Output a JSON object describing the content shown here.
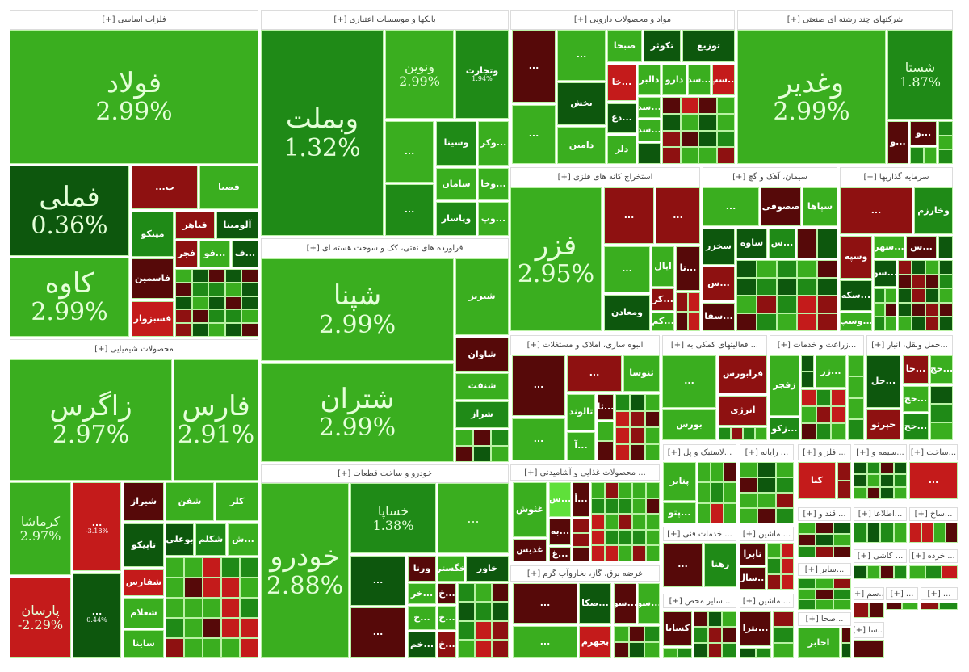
{
  "palette": {
    "G": "#3aae1f",
    "g": "#1f8a17",
    "d": "#0d570d",
    "m": "#560909",
    "r": "#8e1111",
    "R": "#c41b1b",
    "L": "#5fe03a"
  },
  "sectors": [
    {
      "title": "فلزات اساسی [+]",
      "tiles": [
        {
          "s": "فولاد",
          "c": "2.99%",
          "k": "G"
        },
        {
          "s": "فملی",
          "c": "0.36%",
          "k": "d"
        },
        {
          "s": "کاوه",
          "c": "2.99%",
          "k": "G"
        },
        {
          "s": "ب...",
          "c": "",
          "k": "r"
        },
        {
          "s": "فصبا",
          "c": "",
          "k": "G"
        },
        {
          "s": "مینکو",
          "c": "",
          "k": "g"
        },
        {
          "s": "فباهر",
          "c": "",
          "k": "r"
        },
        {
          "s": "آلومینا",
          "c": "",
          "k": "d"
        },
        {
          "s": "فجر",
          "c": "",
          "k": "r"
        },
        {
          "s": "...فو",
          "c": "",
          "k": "G"
        },
        {
          "s": "...ف",
          "c": "",
          "k": "d"
        },
        {
          "s": "فاسمین",
          "c": "",
          "k": "m"
        },
        {
          "s": "فسبزوار",
          "c": "",
          "k": "R"
        }
      ]
    },
    {
      "title": "بانکها و موسسات اعتباری [+]",
      "tiles": [
        {
          "s": "وبملت",
          "c": "1.32%",
          "k": "g"
        },
        {
          "s": "ونوین",
          "c": "2.99%",
          "k": "G"
        },
        {
          "s": "وتجارت",
          "c": "1.94%",
          "k": "g"
        },
        {
          "s": "...",
          "c": "",
          "k": "G"
        },
        {
          "s": "...",
          "c": "",
          "k": "g"
        },
        {
          "s": "وسینا",
          "c": "",
          "k": "g"
        },
        {
          "s": "سامان",
          "c": "",
          "k": "G"
        },
        {
          "s": "وپاسار",
          "c": "",
          "k": "g"
        },
        {
          "s": "...وکر",
          "c": "",
          "k": "G"
        },
        {
          "s": "...وخا",
          "c": "",
          "k": "G"
        },
        {
          "s": "...وپ",
          "c": "",
          "k": "G"
        }
      ]
    },
    {
      "title": "فراورده های نفتی، کک و سوخت هسته ای [+]",
      "tiles": [
        {
          "s": "شپنا",
          "c": "2.99%",
          "k": "G"
        },
        {
          "s": "شتران",
          "c": "2.99%",
          "k": "G"
        },
        {
          "s": "شبریز",
          "c": "",
          "k": "G"
        },
        {
          "s": "شاوان",
          "c": "",
          "k": "m"
        },
        {
          "s": "شنفت",
          "c": "",
          "k": "G"
        },
        {
          "s": "شراز",
          "c": "",
          "k": "g"
        }
      ]
    },
    {
      "title": "محصولات شیمیایی [+]",
      "tiles": [
        {
          "s": "زاگرس",
          "c": "2.97%",
          "k": "G"
        },
        {
          "s": "فارس",
          "c": "2.91%",
          "k": "G"
        },
        {
          "s": "کرماشا",
          "c": "2.97%",
          "k": "G"
        },
        {
          "s": "...",
          "c": "-3.18%",
          "k": "R"
        },
        {
          "s": "پارسان",
          "c": "-2.29%",
          "k": "R"
        },
        {
          "s": "...",
          "c": "0.44%",
          "k": "d"
        },
        {
          "s": "شیراز",
          "c": "",
          "k": "m"
        },
        {
          "s": "شفن",
          "c": "",
          "k": "G"
        },
        {
          "s": "کلر",
          "c": "",
          "k": "G"
        },
        {
          "s": "تاپیکو",
          "c": "",
          "k": "d"
        },
        {
          "s": "بوعلی",
          "c": "",
          "k": "d"
        },
        {
          "s": "شکلم",
          "c": "",
          "k": "g"
        },
        {
          "s": "...ش",
          "c": "",
          "k": "G"
        },
        {
          "s": "شفارس",
          "c": "",
          "k": "R"
        },
        {
          "s": "شغلام",
          "c": "",
          "k": "G"
        },
        {
          "s": "ساینا",
          "c": "",
          "k": "G"
        }
      ]
    },
    {
      "title": "خودرو و ساخت قطعات [+]",
      "tiles": [
        {
          "s": "خودرو",
          "c": "2.88%",
          "k": "G"
        },
        {
          "s": "خساپا",
          "c": "1.38%",
          "k": "g"
        },
        {
          "s": "...",
          "c": "",
          "k": "G"
        },
        {
          "s": "...",
          "c": "",
          "k": "d"
        },
        {
          "s": "...",
          "c": "",
          "k": "m"
        },
        {
          "s": "ورنا",
          "c": "",
          "k": "m"
        },
        {
          "s": "خگستر",
          "c": "",
          "k": "G"
        },
        {
          "s": "خاور",
          "c": "",
          "k": "d"
        },
        {
          "s": "...خر",
          "c": "",
          "k": "G"
        },
        {
          "s": "...خ",
          "c": "",
          "k": "m"
        },
        {
          "s": "...خ",
          "c": "",
          "k": "G"
        },
        {
          "s": "...خ",
          "c": "",
          "k": "G"
        },
        {
          "s": "...خم",
          "c": "",
          "k": "d"
        },
        {
          "s": "...خ",
          "c": "",
          "k": "r"
        }
      ]
    },
    {
      "title": "مواد و محصولات دارویی [+]",
      "tiles": [
        {
          "s": "...",
          "c": "",
          "k": "m"
        },
        {
          "s": "...",
          "c": "",
          "k": "G"
        },
        {
          "s": "...",
          "c": "",
          "k": "G"
        },
        {
          "s": "بخش",
          "c": "",
          "k": "d"
        },
        {
          "s": "دامین",
          "c": "",
          "k": "G"
        },
        {
          "s": "صبحا",
          "c": "",
          "k": "G"
        },
        {
          "s": "تکوثر",
          "c": "",
          "k": "d"
        },
        {
          "s": "توزیع",
          "c": "",
          "k": "d"
        },
        {
          "s": "...خا",
          "c": "",
          "k": "R"
        },
        {
          "s": "دالبر",
          "c": "",
          "k": "G"
        },
        {
          "s": "دارو",
          "c": "",
          "k": "G"
        },
        {
          "s": "...سد",
          "c": "",
          "k": "G"
        },
        {
          "s": "...سپ",
          "c": "",
          "k": "R"
        },
        {
          "s": "...دع",
          "c": "",
          "k": "d"
        },
        {
          "s": "...سد",
          "c": "",
          "k": "G"
        },
        {
          "s": "...سد",
          "c": "",
          "k": "G"
        },
        {
          "s": "دلر",
          "c": "",
          "k": "G"
        }
      ]
    },
    {
      "title": "شرکتهای چند رشته ای صنعتی [+]",
      "tiles": [
        {
          "s": "وغدیر",
          "c": "2.99%",
          "k": "G"
        },
        {
          "s": "شستا",
          "c": "1.87%",
          "k": "g"
        },
        {
          "s": "...و",
          "c": "",
          "k": "m"
        },
        {
          "s": "...و",
          "c": "",
          "k": "m"
        }
      ]
    },
    {
      "title": "استخراج کانه های فلزی [+]",
      "tiles": [
        {
          "s": "فزر",
          "c": "2.95%",
          "k": "G"
        },
        {
          "s": "...",
          "c": "",
          "k": "r"
        },
        {
          "s": "...",
          "c": "",
          "k": "r"
        },
        {
          "s": "...",
          "c": "",
          "k": "G"
        },
        {
          "s": "اپال",
          "c": "",
          "k": "G"
        },
        {
          "s": "...تا",
          "c": "",
          "k": "m"
        },
        {
          "s": "ومعادن",
          "c": "",
          "k": "d"
        },
        {
          "s": "...کر",
          "c": "",
          "k": "r"
        },
        {
          "s": "...کم",
          "c": "",
          "k": "G"
        }
      ]
    },
    {
      "title": "سیمان، آهک و گچ [+]",
      "tiles": [
        {
          "s": "...",
          "c": "",
          "k": "G"
        },
        {
          "s": "صصوفی",
          "c": "",
          "k": "m"
        },
        {
          "s": "سپاها",
          "c": "",
          "k": "G"
        },
        {
          "s": "سخزر",
          "c": "",
          "k": "d"
        },
        {
          "s": "ساوه",
          "c": "",
          "k": "d"
        },
        {
          "s": "...س",
          "c": "",
          "k": "g"
        },
        {
          "s": "...س",
          "c": "",
          "k": "r"
        },
        {
          "s": "...سفا",
          "c": "",
          "k": "m"
        }
      ]
    },
    {
      "title": "سرمایه گذاریها [+]",
      "tiles": [
        {
          "s": "...",
          "c": "",
          "k": "r"
        },
        {
          "s": "وخارزم",
          "c": "",
          "k": "g"
        },
        {
          "s": "وسپه",
          "c": "",
          "k": "r"
        },
        {
          "s": "...سهر",
          "c": "",
          "k": "G"
        },
        {
          "s": "...س",
          "c": "",
          "k": "m"
        },
        {
          "s": "...سو",
          "c": "",
          "k": "d"
        },
        {
          "s": "...سکه",
          "c": "",
          "k": "d"
        },
        {
          "s": "...وسپ",
          "c": "",
          "k": "G"
        }
      ]
    },
    {
      "title": "انبوه سازی، املاک و مستغلات [+]",
      "tiles": [
        {
          "s": "...",
          "c": "",
          "k": "m"
        },
        {
          "s": "...",
          "c": "",
          "k": "r"
        },
        {
          "s": "ثنوسا",
          "c": "",
          "k": "G"
        },
        {
          "s": "...",
          "c": "",
          "k": "G"
        },
        {
          "s": "ثالوند",
          "c": "",
          "k": "G"
        },
        {
          "s": "...آ",
          "c": "",
          "k": "G"
        },
        {
          "s": "...ثا",
          "c": "",
          "k": "m"
        }
      ]
    },
    {
      "title": "... فعالیتهای کمکی به [+]",
      "tiles": [
        {
          "s": "...",
          "c": "",
          "k": "G"
        },
        {
          "s": "بورس",
          "c": "",
          "k": "G"
        },
        {
          "s": "فرابورس",
          "c": "",
          "k": "r"
        },
        {
          "s": "انرژی",
          "c": "",
          "k": "r"
        }
      ]
    },
    {
      "title": "...زراعت و خدمات [+]",
      "tiles": [
        {
          "s": "زفجر",
          "c": "",
          "k": "G"
        },
        {
          "s": "...زکو",
          "c": "",
          "k": "g"
        },
        {
          "s": "...زر",
          "c": "",
          "k": "G"
        }
      ]
    },
    {
      "title": "...حمل ونقل، انبار [+]",
      "tiles": [
        {
          "s": "...حل",
          "c": "",
          "k": "d"
        },
        {
          "s": "...حا",
          "c": "",
          "k": "r"
        },
        {
          "s": "...حج",
          "c": "",
          "k": "G"
        },
        {
          "s": "...حج",
          "c": "",
          "k": "G"
        },
        {
          "s": "حپرتو",
          "c": "",
          "k": "r"
        },
        {
          "s": "...حج",
          "c": "",
          "k": "g"
        }
      ]
    },
    {
      "title": "... محصولات غذایی و آشامیدنی [+]",
      "tiles": [
        {
          "s": "غثوش",
          "c": "",
          "k": "G"
        },
        {
          "s": "...س",
          "c": "",
          "k": "L"
        },
        {
          "s": "...به",
          "c": "",
          "k": "m"
        },
        {
          "s": "غدیس",
          "c": "",
          "k": "m"
        },
        {
          "s": "...غ",
          "c": "",
          "k": "m"
        },
        {
          "s": "...أ",
          "c": "",
          "k": "m"
        }
      ]
    },
    {
      "title": "عرضه برق، گاز، بخاروآب گرم [+]",
      "tiles": [
        {
          "s": "...",
          "c": "",
          "k": "m"
        },
        {
          "s": "...صکا",
          "c": "",
          "k": "d"
        },
        {
          "s": "...سو",
          "c": "",
          "k": "m"
        },
        {
          "s": "...سو",
          "c": "",
          "k": "G"
        },
        {
          "s": "...",
          "c": "",
          "k": "G"
        },
        {
          "s": "بجهرم",
          "c": "",
          "k": "R"
        }
      ]
    },
    {
      "title": "...لاستیک و پل [+]",
      "tiles": [
        {
          "s": "پتایر",
          "c": "",
          "k": "G"
        },
        {
          "s": "...پتو",
          "c": "",
          "k": "G"
        }
      ]
    },
    {
      "title": "... خدمات فنی [+]",
      "tiles": [
        {
          "s": "...",
          "c": "",
          "k": "m"
        },
        {
          "s": "رهنا",
          "c": "",
          "k": "g"
        }
      ]
    },
    {
      "title": "...سایر محص [+]",
      "tiles": [
        {
          "s": "کسایا",
          "c": "",
          "k": "m"
        }
      ]
    },
    {
      "title": "... رایانه [+]",
      "tiles": []
    },
    {
      "title": "... ماشین [+]",
      "tiles": [
        {
          "s": "تاپرا",
          "c": "",
          "k": "m"
        },
        {
          "s": "...سال",
          "c": "",
          "k": "m"
        }
      ]
    },
    {
      "title": "... ماشین [+]",
      "tiles": [
        {
          "s": "...بترا",
          "c": "",
          "k": "m"
        }
      ]
    },
    {
      "title": "... فلز و [+]",
      "tiles": [
        {
          "s": "کنا",
          "c": "",
          "k": "R"
        }
      ]
    },
    {
      "title": "... قند و [+]",
      "tiles": []
    },
    {
      "title": "...سایر [+]",
      "tiles": []
    },
    {
      "title": "...صحا [+]",
      "tiles": [
        {
          "s": "اخابر",
          "c": "",
          "k": "G"
        }
      ]
    },
    {
      "title": "...سیمه و [+]",
      "tiles": []
    },
    {
      "title": "...اطلاعا [+]",
      "tiles": []
    },
    {
      "title": "... کاشی [+]",
      "tiles": []
    },
    {
      "title": "...سم [+]",
      "tiles": []
    },
    {
      "title": "...سا [+]",
      "tiles": []
    },
    {
      "title": "... [+]",
      "tiles": []
    },
    {
      "title": "... [+]",
      "tiles": []
    },
    {
      "title": "...ساخت [+]",
      "tiles": [
        {
          "s": "...",
          "c": "",
          "k": "R"
        }
      ]
    },
    {
      "title": "...ساخ [+]",
      "tiles": []
    },
    {
      "title": "... خرده [+]",
      "tiles": []
    }
  ]
}
